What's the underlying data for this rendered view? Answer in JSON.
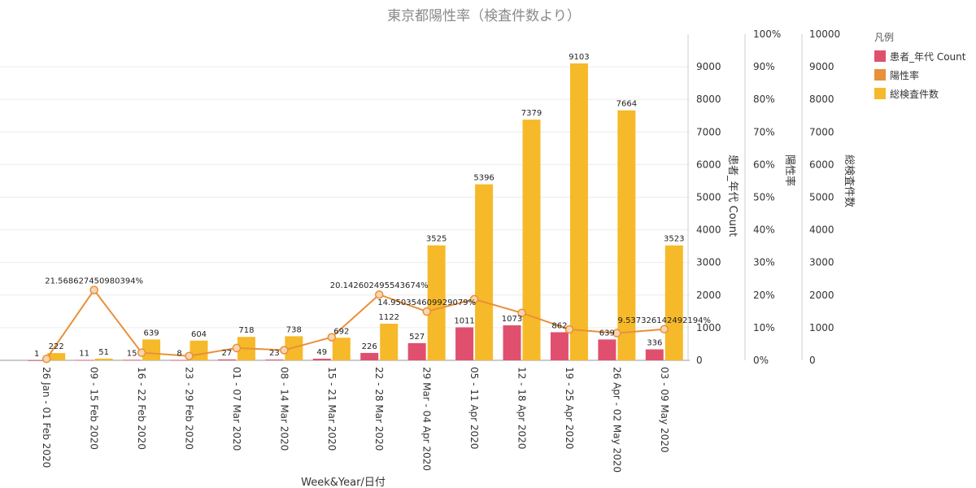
{
  "chart_data": {
    "type": "bar",
    "title": "東京都陽性率（検査件数より）",
    "xlabel": "Week&Year/日付",
    "categories": [
      "26 Jan - 01 Feb 2020",
      "09 - 15 Feb 2020",
      "16 - 22 Feb 2020",
      "23 - 29 Feb 2020",
      "01 - 07 Mar 2020",
      "08 - 14 Mar 2020",
      "15 - 21 Mar 2020",
      "22 - 28 Mar 2020",
      "29 Mar - 04 Apr 2020",
      "05 - 11 Apr 2020",
      "12 - 18 Apr 2020",
      "19 - 25 Apr 2020",
      "26 Apr - 02 May 2020",
      "03 - 09 May 2020"
    ],
    "series": [
      {
        "name": "患者_年代 Count",
        "type": "bar",
        "color": "#e0506e",
        "axis": "y1",
        "values": [
          1,
          11,
          15,
          8,
          27,
          23,
          49,
          226,
          527,
          1011,
          1073,
          862,
          639,
          336
        ]
      },
      {
        "name": "陽性率",
        "type": "line",
        "color": "#e8903a",
        "axis": "y2",
        "unit": "%",
        "values": [
          0.45,
          21.568627450980394,
          2.35,
          1.32,
          3.76,
          3.12,
          7.08,
          20.142602495543674,
          14.950354609929079,
          18.74,
          14.54,
          9.47,
          8.34,
          9.537326142492194
        ],
        "point_labels": [
          "",
          "21.568627450980394%",
          "",
          "",
          "",
          "",
          "",
          "20.142602495543674%",
          "14.950354609929079%",
          "",
          "",
          "",
          "",
          "9.537326142492194%"
        ]
      },
      {
        "name": "総検査件数",
        "type": "bar",
        "color": "#f6b929",
        "axis": "y3",
        "values": [
          222,
          51,
          639,
          604,
          718,
          738,
          692,
          1122,
          3525,
          5396,
          7379,
          9103,
          7664,
          3523
        ]
      }
    ],
    "axes": {
      "y1": {
        "title": "患者_年代 Count",
        "range": [
          0,
          10000
        ],
        "ticks": [
          "0",
          "1000",
          "2000",
          "3000",
          "4000",
          "5000",
          "6000",
          "7000",
          "8000",
          "9000"
        ]
      },
      "y2": {
        "title": "陽性率",
        "range": [
          0,
          100
        ],
        "ticks": [
          "0%",
          "10%",
          "20%",
          "30%",
          "40%",
          "50%",
          "60%",
          "70%",
          "80%",
          "90%",
          "100%"
        ]
      },
      "y3": {
        "title": "総検査件数",
        "range": [
          0,
          10000
        ],
        "ticks": [
          "0",
          "1000",
          "2000",
          "3000",
          "4000",
          "5000",
          "6000",
          "7000",
          "8000",
          "9000",
          "10000"
        ]
      }
    },
    "grid": true,
    "legend": {
      "title": "凡例",
      "position": "right",
      "items": [
        {
          "label": "患者_年代 Count",
          "color": "#e0506e"
        },
        {
          "label": "陽性率",
          "color": "#e8903a"
        },
        {
          "label": "総検査件数",
          "color": "#f6b929"
        }
      ]
    }
  }
}
